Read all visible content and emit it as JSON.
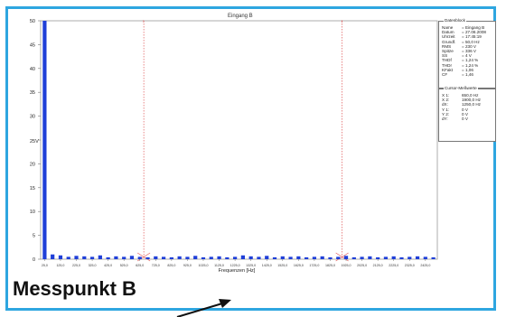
{
  "chart_data": {
    "type": "bar",
    "title": "Eingang B",
    "xlabel": "Frequenzen [Hz]",
    "ylabel": "",
    "y_unit_label": "25V",
    "ylim": [
      0,
      50
    ],
    "yticks": [
      0,
      5,
      10,
      15,
      20,
      25,
      30,
      35,
      40,
      45,
      50
    ],
    "ytick_labels": [
      "0",
      "5",
      "10",
      "15",
      "20",
      "",
      "30",
      "35",
      "40",
      "45",
      "50"
    ],
    "xlim": [
      0,
      2500
    ],
    "xtick_labels": [
      "25,0",
      "125,0",
      "225,0",
      "325,0",
      "425,0",
      "525,0",
      "625,0",
      "725,0",
      "825,0",
      "925,0",
      "1025,0",
      "1125,0",
      "1225,0",
      "1325,0",
      "1425,0",
      "1525,0",
      "1625,0",
      "1725,0",
      "1825,0",
      "1925,0",
      "2025,0",
      "2125,0",
      "2225,0",
      "2325,0",
      "2425,0"
    ],
    "bar_x": [
      25,
      75,
      125,
      175,
      225,
      275,
      325,
      375,
      425,
      475,
      525,
      575,
      625,
      675,
      725,
      775,
      825,
      875,
      925,
      975,
      1025,
      1075,
      1125,
      1175,
      1225,
      1275,
      1325,
      1375,
      1425,
      1475,
      1525,
      1575,
      1625,
      1675,
      1725,
      1775,
      1825,
      1875,
      1925,
      1975,
      2025,
      2075,
      2125,
      2175,
      2225,
      2275,
      2325,
      2375,
      2425,
      2475
    ],
    "values": [
      50,
      1.0,
      0.8,
      0.5,
      0.7,
      0.6,
      0.5,
      0.8,
      0.4,
      0.6,
      0.5,
      0.7,
      0.5,
      0.4,
      0.6,
      0.5,
      0.4,
      0.6,
      0.5,
      0.7,
      0.4,
      0.5,
      0.6,
      0.4,
      0.5,
      0.8,
      0.6,
      0.5,
      0.7,
      0.4,
      0.6,
      0.5,
      0.6,
      0.4,
      0.5,
      0.6,
      0.4,
      0.5,
      0.7,
      0.4,
      0.5,
      0.6,
      0.4,
      0.5,
      0.6,
      0.4,
      0.5,
      0.6,
      0.5,
      0.4
    ],
    "bar_color": "#1f3fd8",
    "cursors": [
      650,
      1900
    ],
    "cursor_color": "#e05555",
    "grid": false
  },
  "datablock": {
    "header": "Datenblock",
    "rows": [
      {
        "k": "Name",
        "v": "= Eingang B"
      },
      {
        "k": "Datum",
        "v": "= 27.06.2008"
      },
      {
        "k": "Uhrzeit",
        "v": "= 17:45:19"
      },
      {
        "k": "Grundf.",
        "v": "= 50,0 Hz"
      },
      {
        "k": "RMS",
        "v": "= 230 V"
      },
      {
        "k": "Spitze",
        "v": "= 336 V"
      },
      {
        "k": "SS",
        "v": "= 4 V"
      },
      {
        "k": "THDf",
        "v": "= 1,24 %"
      },
      {
        "k": "THDr",
        "v": "= 1,24 %"
      },
      {
        "k": "KFakt",
        "v": "= 1,06"
      },
      {
        "k": "CF",
        "v": "= 1,46"
      }
    ]
  },
  "cursorblock": {
    "header": "Cursor-Meßwerte",
    "rows": [
      {
        "k": "X 1:",
        "v": "650,0 Hz"
      },
      {
        "k": "X 2:",
        "v": "1900,0 Hz"
      },
      {
        "k": "dX:",
        "v": "1250,0 Hz"
      },
      {
        "k": "Y 1:",
        "v": "0 V"
      },
      {
        "k": "Y 2:",
        "v": "0 V"
      },
      {
        "k": "dY:",
        "v": "0 V"
      }
    ]
  },
  "caption": "Messpunkt B"
}
